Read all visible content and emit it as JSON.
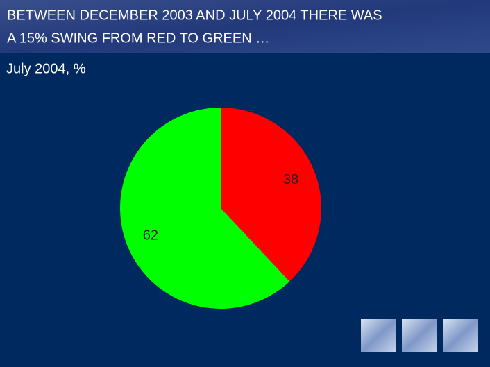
{
  "chart_data": {
    "type": "pie",
    "title_lines": [
      "BETWEEN DECEMBER 2003 AND JULY 2004 THERE WAS",
      "A 15% SWING FROM RED TO GREEN …"
    ],
    "subtitle": "July 2004, %",
    "values": [
      38,
      62
    ],
    "colors": [
      "#ff0000",
      "#00ff00"
    ]
  }
}
